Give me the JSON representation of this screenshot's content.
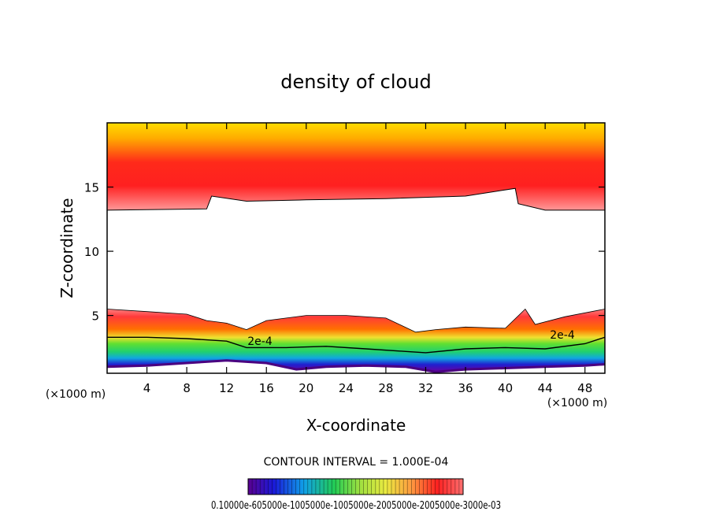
{
  "chart_data": {
    "type": "heatmap",
    "title": "density of cloud",
    "xlabel": "X-coordinate",
    "ylabel": "Z-coordinate",
    "x_unit_label": "(×1000 m)",
    "xlim": [
      0,
      50
    ],
    "ylim": [
      0.5,
      20
    ],
    "x_ticks": [
      4,
      8,
      12,
      16,
      20,
      24,
      28,
      32,
      36,
      40,
      44,
      48
    ],
    "y_ticks": [
      5,
      10,
      15
    ],
    "contour_interval_label": "CONTOUR INTERVAL = 1.000E-04",
    "contour_labels": [
      "2e-4",
      "2e-4"
    ],
    "colorbar_labels": "0.10000e-605000e-1005000e-1005000e-2005000e-2005000e-3000e-03",
    "colormap": [
      "#5a0090",
      "#1a1ad8",
      "#10a0e8",
      "#22cc55",
      "#9fe040",
      "#eaea40",
      "#ff9a40",
      "#ff2020",
      "#ff7070"
    ],
    "lower_cloud_top": [
      [
        0,
        5.5
      ],
      [
        4,
        5.3
      ],
      [
        8,
        5.1
      ],
      [
        10,
        4.6
      ],
      [
        12,
        4.4
      ],
      [
        14,
        3.9
      ],
      [
        16,
        4.6
      ],
      [
        20,
        5.0
      ],
      [
        24,
        5.0
      ],
      [
        28,
        4.8
      ],
      [
        31,
        3.7
      ],
      [
        33,
        3.9
      ],
      [
        36,
        4.1
      ],
      [
        40,
        4.0
      ],
      [
        42,
        5.5
      ],
      [
        43,
        4.3
      ],
      [
        46,
        4.9
      ],
      [
        50,
        5.5
      ]
    ],
    "lower_cloud_base": [
      [
        0,
        1.0
      ],
      [
        4,
        1.1
      ],
      [
        8,
        1.3
      ],
      [
        12,
        1.5
      ],
      [
        16,
        1.3
      ],
      [
        19,
        0.8
      ],
      [
        22,
        1.0
      ],
      [
        26,
        1.1
      ],
      [
        30,
        1.0
      ],
      [
        33,
        0.6
      ],
      [
        36,
        0.8
      ],
      [
        40,
        0.9
      ],
      [
        44,
        1.0
      ],
      [
        48,
        1.1
      ],
      [
        50,
        1.2
      ]
    ],
    "contour_2e4": [
      [
        0,
        3.3
      ],
      [
        4,
        3.3
      ],
      [
        8,
        3.2
      ],
      [
        12,
        3.0
      ],
      [
        14,
        2.5
      ],
      [
        18,
        2.5
      ],
      [
        22,
        2.6
      ],
      [
        26,
        2.4
      ],
      [
        30,
        2.2
      ],
      [
        32,
        2.1
      ],
      [
        36,
        2.4
      ],
      [
        40,
        2.5
      ],
      [
        44,
        2.4
      ],
      [
        48,
        2.8
      ],
      [
        50,
        3.3
      ]
    ],
    "upper_cloud_bottom": [
      [
        0,
        13.2
      ],
      [
        10,
        13.3
      ],
      [
        10.5,
        14.3
      ],
      [
        14,
        13.9
      ],
      [
        20,
        14.0
      ],
      [
        28,
        14.1
      ],
      [
        36,
        14.3
      ],
      [
        41,
        14.9
      ],
      [
        41.3,
        13.7
      ],
      [
        44,
        13.2
      ],
      [
        50,
        13.2
      ]
    ],
    "upper_cloud_top": 20
  }
}
